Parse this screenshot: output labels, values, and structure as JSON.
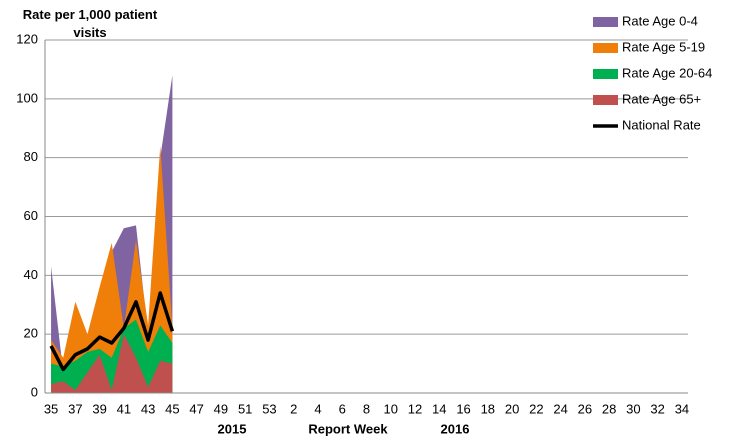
{
  "chart_data": {
    "type": "area",
    "ylabel": "Rate per 1,000 patient visits",
    "xlabel": "Report Week",
    "x_group_labels": [
      "2015",
      "2016"
    ],
    "categories": [
      "35",
      null,
      "37",
      null,
      "39",
      null,
      "41",
      null,
      "43",
      null,
      "45",
      null,
      "47",
      null,
      "49",
      null,
      "51",
      null,
      "53",
      null,
      "2",
      null,
      "4",
      null,
      "6",
      null,
      "8",
      null,
      "10",
      null,
      "12",
      null,
      "14",
      null,
      "16",
      null,
      "18",
      null,
      "20",
      null,
      "22",
      null,
      "24",
      null,
      "26",
      null,
      "28",
      null,
      "30",
      null,
      "32",
      null,
      "34"
    ],
    "ylim": [
      0,
      120
    ],
    "yticks": [
      0,
      20,
      40,
      60,
      80,
      100,
      120
    ],
    "grid": true,
    "legend": "top-right",
    "series": [
      {
        "name": "Rate Age 0-4",
        "color": "#8064a2",
        "values": [
          43,
          7,
          28,
          18,
          33,
          48,
          56,
          57,
          20,
          80,
          108,
          null,
          null,
          null,
          null,
          null,
          null,
          null,
          null,
          null,
          null,
          null,
          null,
          null,
          null,
          null,
          null,
          null,
          null,
          null,
          null,
          null,
          null,
          null,
          null,
          null,
          null,
          null,
          null,
          null,
          null,
          null,
          null,
          null,
          null,
          null,
          null,
          null,
          null,
          null,
          null,
          null,
          null
        ]
      },
      {
        "name": "Rate Age 5-19",
        "color": "#f07f09",
        "values": [
          18,
          12,
          31,
          20,
          36,
          51,
          22,
          52,
          23,
          84,
          22,
          null,
          null,
          null,
          null,
          null,
          null,
          null,
          null,
          null,
          null,
          null,
          null,
          null,
          null,
          null,
          null,
          null,
          null,
          null,
          null,
          null,
          null,
          null,
          null,
          null,
          null,
          null,
          null,
          null,
          null,
          null,
          null,
          null,
          null,
          null,
          null,
          null,
          null,
          null,
          null,
          null,
          null
        ]
      },
      {
        "name": "Rate Age 20-64",
        "color": "#00b050",
        "values": [
          10,
          9,
          11,
          14,
          15,
          12,
          22,
          25,
          14,
          23,
          17,
          null,
          null,
          null,
          null,
          null,
          null,
          null,
          null,
          null,
          null,
          null,
          null,
          null,
          null,
          null,
          null,
          null,
          null,
          null,
          null,
          null,
          null,
          null,
          null,
          null,
          null,
          null,
          null,
          null,
          null,
          null,
          null,
          null,
          null,
          null,
          null,
          null,
          null,
          null,
          null,
          null,
          null
        ]
      },
      {
        "name": "Rate Age 65+",
        "color": "#c0504d",
        "values": [
          3,
          4,
          1,
          7,
          13,
          1,
          20,
          12,
          2,
          11,
          10,
          null,
          null,
          null,
          null,
          null,
          null,
          null,
          null,
          null,
          null,
          null,
          null,
          null,
          null,
          null,
          null,
          null,
          null,
          null,
          null,
          null,
          null,
          null,
          null,
          null,
          null,
          null,
          null,
          null,
          null,
          null,
          null,
          null,
          null,
          null,
          null,
          null,
          null,
          null,
          null,
          null,
          null
        ]
      },
      {
        "name": "National Rate",
        "color": "#000000",
        "type": "line",
        "values": [
          16,
          8,
          13,
          15,
          19,
          17,
          22,
          31,
          18,
          34,
          21,
          null,
          null,
          null,
          null,
          null,
          null,
          null,
          null,
          null,
          null,
          null,
          null,
          null,
          null,
          null,
          null,
          null,
          null,
          null,
          null,
          null,
          null,
          null,
          null,
          null,
          null,
          null,
          null,
          null,
          null,
          null,
          null,
          null,
          null,
          null,
          null,
          null,
          null,
          null,
          null,
          null,
          null
        ]
      }
    ]
  }
}
